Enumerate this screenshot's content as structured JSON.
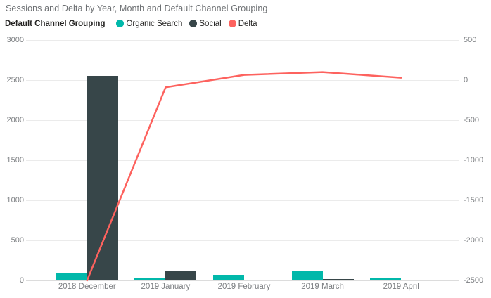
{
  "title": "Sessions and Delta by Year, Month and Default Channel Grouping",
  "legend": {
    "title": "Default Channel Grouping",
    "items": [
      {
        "label": "Organic Search",
        "color": "#01B8AA"
      },
      {
        "label": "Social",
        "color": "#374649"
      },
      {
        "label": "Delta",
        "color": "#FD625E"
      }
    ]
  },
  "chart_data": {
    "type": "bar",
    "subtype": "combo-clustered-bar-with-line",
    "title": "Sessions and Delta by Year, Month and Default Channel Grouping",
    "categories": [
      "2018 December",
      "2019 January",
      "2019 February",
      "2019 March",
      "2019 April"
    ],
    "bar_series": [
      {
        "name": "Organic Search",
        "axis": "left",
        "color": "#01B8AA",
        "values": [
          90,
          30,
          70,
          110,
          30
        ]
      },
      {
        "name": "Social",
        "axis": "left",
        "color": "#374649",
        "values": [
          2550,
          120,
          0,
          20,
          0
        ]
      }
    ],
    "line_series": [
      {
        "name": "Delta",
        "axis": "right",
        "color": "#FD625E",
        "values": [
          -2500,
          -90,
          65,
          100,
          30
        ]
      }
    ],
    "left_axis": {
      "min": 0,
      "max": 3000,
      "step": 500,
      "tick_labels": [
        "3000",
        "2500",
        "2000",
        "1500",
        "1000",
        "500",
        "0"
      ]
    },
    "right_axis": {
      "min": -2500,
      "max": 500,
      "step": 500,
      "tick_labels": [
        "500",
        "0",
        "-500",
        "-1000",
        "-1500",
        "-2000",
        "-2500"
      ]
    },
    "grid": true,
    "legend_position": "top-left",
    "xlabel": "",
    "ylabel_left": "",
    "ylabel_right": ""
  },
  "colors": {
    "background": "#ffffff",
    "title_text": "#6d7073",
    "axis_text": "#7b7e81",
    "gridline": "#ebebeb",
    "organic_search": "#01B8AA",
    "social": "#374649",
    "delta": "#FD625E"
  }
}
